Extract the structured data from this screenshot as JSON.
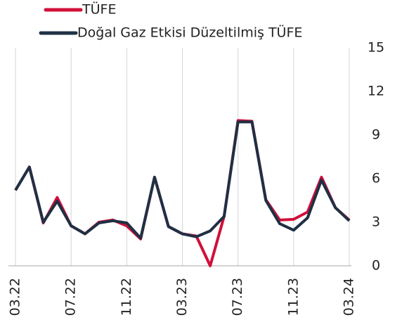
{
  "chart_data": {
    "type": "line",
    "categories": [
      "03.22",
      null,
      null,
      null,
      "07.22",
      null,
      null,
      null,
      "11.22",
      null,
      null,
      null,
      "03.23",
      null,
      null,
      null,
      "07.23",
      null,
      null,
      null,
      "11.23",
      null,
      null,
      null,
      "03.24"
    ],
    "series": [
      {
        "name": "TÜFE",
        "color": "#d0103a",
        "values": [
          5.2,
          6.8,
          2.95,
          4.7,
          2.75,
          2.2,
          3.0,
          3.15,
          2.75,
          1.85,
          6.1,
          2.7,
          2.2,
          2.05,
          0,
          3.4,
          10.0,
          9.95,
          4.55,
          3.15,
          3.2,
          3.7,
          6.1,
          4.0,
          3.15
        ]
      },
      {
        "name": "Doğal Gaz Etkisi Düzeltilmiş TÜFE",
        "color": "#1f3044",
        "values": [
          5.2,
          6.8,
          3.0,
          4.45,
          2.75,
          2.2,
          2.95,
          3.1,
          2.95,
          1.9,
          6.1,
          2.7,
          2.2,
          2.0,
          2.4,
          3.4,
          9.9,
          9.9,
          4.5,
          2.9,
          2.45,
          3.3,
          5.9,
          4.0,
          3.1
        ]
      }
    ],
    "ylim": [
      0,
      15
    ],
    "yticks": [
      0,
      3,
      6,
      9,
      12,
      15
    ],
    "grid": true,
    "legend": "top-left"
  }
}
